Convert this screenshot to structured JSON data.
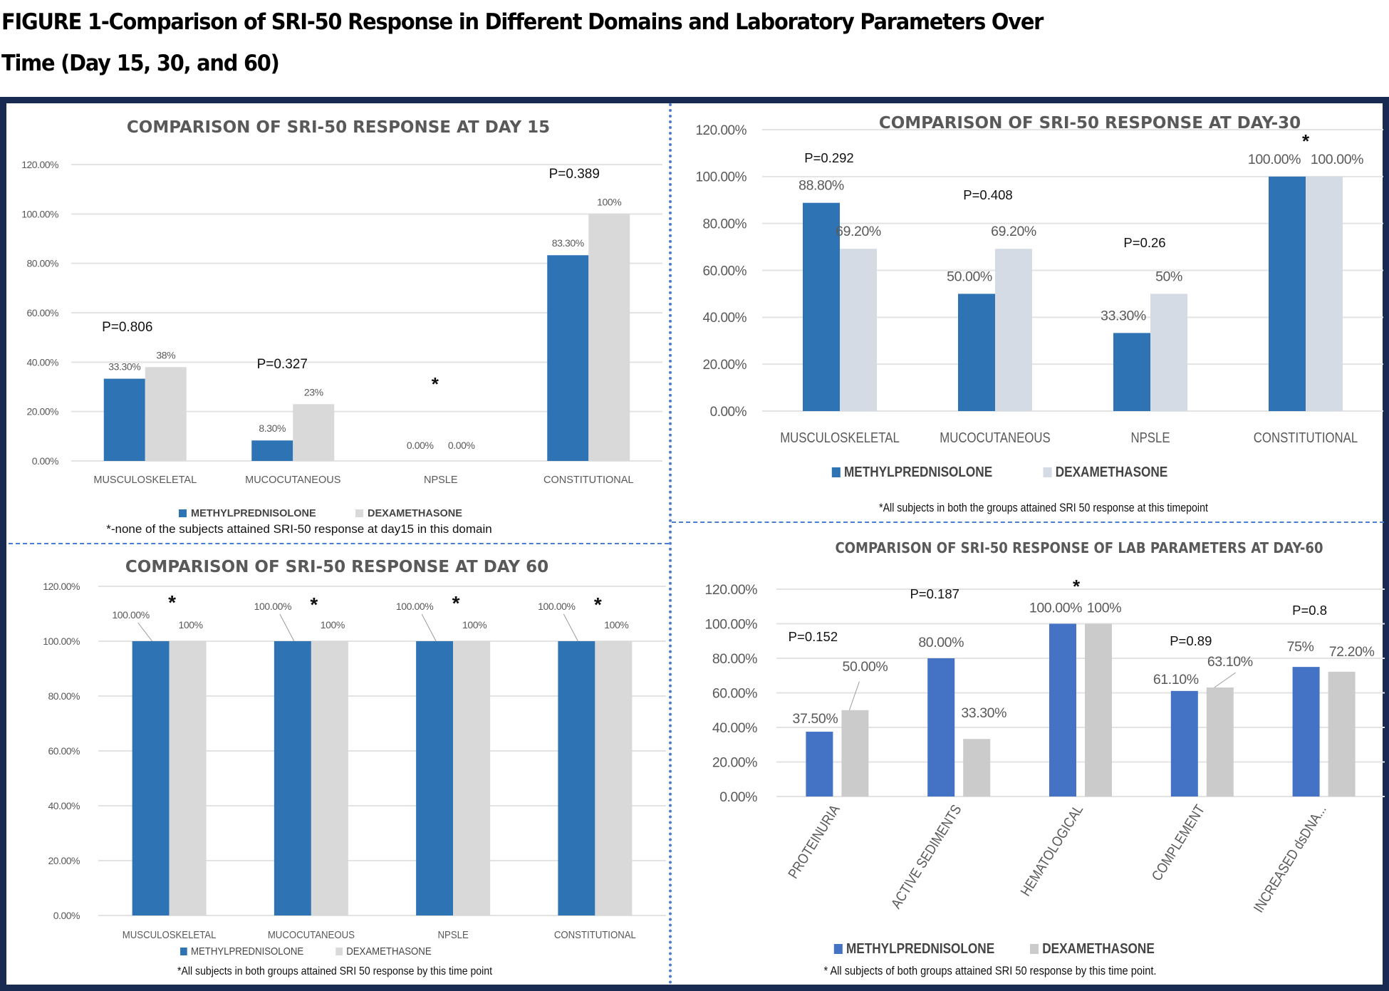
{
  "figure": {
    "title_line1": "FIGURE 1-Comparison of SRI-50 Response in Different Domains and Laboratory Parameters Over",
    "title_line2": "Time (Day 15, 30, and 60)"
  },
  "colors": {
    "methylprednisolone_a": "#2e74b5",
    "methylprednisolone_b": "#4472c4",
    "dexamethasone_a": "#d9d9d9",
    "dexamethasone_b": "#d5dbe5",
    "dexamethasone_c": "#cccbcb",
    "frame": "#182a52",
    "divider": "#4a7fd0"
  },
  "legend": {
    "series1": "METHYLPREDNISOLONE",
    "series2": "DEXAMETHASONE"
  },
  "chart_data": [
    {
      "id": "day15",
      "type": "bar",
      "title": "COMPARISON OF SRI-50 RESPONSE AT DAY 15",
      "categories": [
        "MUSCULOSKELETAL",
        "MUCOCUTANEOUS",
        "NPSLE",
        "CONSTITUTIONAL"
      ],
      "series": [
        {
          "name": "METHYLPREDNISOLONE",
          "values": [
            33.3,
            8.3,
            0,
            83.3
          ],
          "labels": [
            "33.30%",
            "8.30%",
            "0.00%",
            "83.30%"
          ]
        },
        {
          "name": "DEXAMETHASONE",
          "values": [
            38,
            23,
            0,
            100
          ],
          "labels": [
            "38%",
            "23%",
            "0.00%",
            "100%"
          ]
        }
      ],
      "annotations": [
        "P=0.806",
        "P=0.327",
        "*",
        "P=0.389"
      ],
      "yticks": [
        "0.00%",
        "20.00%",
        "40.00%",
        "60.00%",
        "80.00%",
        "100.00%",
        "120.00%"
      ],
      "ylim": [
        0,
        120
      ],
      "grid": true,
      "legend": "bottom",
      "footnote": "*-none of the subjects attained SRI-50 response at day15 in this domain"
    },
    {
      "id": "day30",
      "type": "bar",
      "title": "COMPARISON OF SRI-50 RESPONSE AT DAY-30",
      "categories": [
        "MUSCULOSKELETAL",
        "MUCOCUTANEOUS",
        "NPSLE",
        "CONSTITUTIONAL"
      ],
      "series": [
        {
          "name": "METHYLPREDNISOLONE",
          "values": [
            88.8,
            50,
            33.3,
            100
          ],
          "labels": [
            "88.80%",
            "50.00%",
            "33.30%",
            "100.00%"
          ]
        },
        {
          "name": "DEXAMETHASONE",
          "values": [
            69.2,
            69.2,
            50,
            100
          ],
          "labels": [
            "69.20%",
            "69.20%",
            "50%",
            "100.00%"
          ]
        }
      ],
      "annotations": [
        "P=0.292",
        "P=0.408",
        "P=0.26",
        "*"
      ],
      "yticks": [
        "0.00%",
        "20.00%",
        "40.00%",
        "60.00%",
        "80.00%",
        "100.00%",
        "120.00%"
      ],
      "ylim": [
        0,
        120
      ],
      "grid": true,
      "legend": "bottom",
      "footnote": "*All subjects in both the groups attained SRI 50 response at this timepoint"
    },
    {
      "id": "day60",
      "type": "bar",
      "title": "COMPARISON OF SRI-50 RESPONSE AT DAY 60",
      "categories": [
        "MUSCULOSKELETAL",
        "MUCOCUTANEOUS",
        "NPSLE",
        "CONSTITUTIONAL"
      ],
      "series": [
        {
          "name": "METHYLPREDNISOLONE",
          "values": [
            100,
            100,
            100,
            100
          ],
          "labels": [
            "100.00%",
            "100.00%",
            "100.00%",
            "100.00%"
          ]
        },
        {
          "name": "DEXAMETHASONE",
          "values": [
            100,
            100,
            100,
            100
          ],
          "labels": [
            "100%",
            "100%",
            "100%",
            "100%"
          ]
        }
      ],
      "annotations": [
        "*",
        "*",
        "*",
        "*"
      ],
      "yticks": [
        "0.00%",
        "20.00%",
        "40.00%",
        "60.00%",
        "80.00%",
        "100.00%",
        "120.00%"
      ],
      "ylim": [
        0,
        120
      ],
      "grid": true,
      "legend": "bottom",
      "footnote": "*All subjects in both groups attained SRI 50 response by this time point"
    },
    {
      "id": "lab60",
      "type": "bar",
      "title": "COMPARISON OF SRI-50 RESPONSE OF LAB PARAMETERS AT DAY-60",
      "categories": [
        "PROTEINURIA",
        "ACTIVE SEDIMENTS",
        "HEMATOLOGICAL",
        "COMPLEMENT",
        "INCREASED dsDNA..."
      ],
      "series": [
        {
          "name": "METHYLPREDNISOLONE",
          "values": [
            37.5,
            80,
            100,
            61.1,
            75
          ],
          "labels": [
            "37.50%",
            "80.00%",
            "100.00%",
            "61.10%",
            "75%"
          ]
        },
        {
          "name": "DEXAMETHASONE",
          "values": [
            50,
            33.3,
            100,
            63.1,
            72.2
          ],
          "labels": [
            "50.00%",
            "33.30%",
            "100%",
            "63.10%",
            "72.20%"
          ]
        }
      ],
      "annotations": [
        "P=0.152",
        "P=0.187",
        "*",
        "P=0.89",
        "P=0.8"
      ],
      "yticks": [
        "0.00%",
        "20.00%",
        "40.00%",
        "60.00%",
        "80.00%",
        "100.00%",
        "120.00%"
      ],
      "ylim": [
        0,
        120
      ],
      "grid": true,
      "legend": "bottom",
      "footnote": "* All subjects of both groups attained SRI 50 response by this time point."
    }
  ]
}
